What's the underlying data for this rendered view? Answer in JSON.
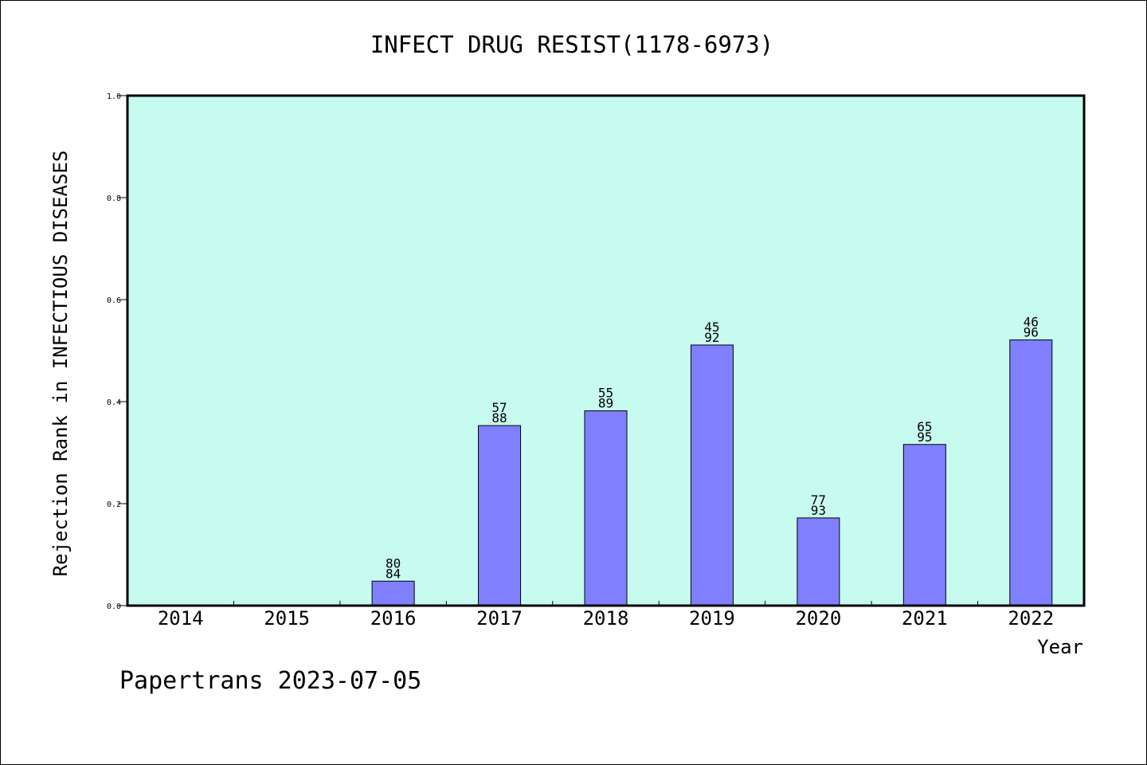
{
  "colors": {
    "plot_background": "#c8fbef",
    "bar_fill": "#8080ff",
    "bar_stroke": "#000000",
    "axis": "#000000",
    "text": "#000000"
  },
  "footer": {
    "watermark": "Papertrans 2023-07-05"
  },
  "chart_data": {
    "type": "bar",
    "title": "INFECT DRUG RESIST(1178-6973)",
    "xlabel": "Year",
    "ylabel": "Rejection Rank in INFECTIOUS DISEASES",
    "ylim": [
      0,
      1.0
    ],
    "yticks": [
      "0.0",
      "0.2",
      "0.4",
      "0.6",
      "0.8",
      "1.0"
    ],
    "grid": false,
    "categories": [
      "2014",
      "2015",
      "2016",
      "2017",
      "2018",
      "2019",
      "2020",
      "2021",
      "2022"
    ],
    "values": [
      null,
      null,
      0.048,
      0.353,
      0.382,
      0.511,
      0.172,
      0.316,
      0.521
    ],
    "labels": [
      null,
      null,
      [
        "80",
        "84"
      ],
      [
        "57",
        "88"
      ],
      [
        "55",
        "89"
      ],
      [
        "45",
        "92"
      ],
      [
        "77",
        "93"
      ],
      [
        "65",
        "95"
      ],
      [
        "46",
        "96"
      ]
    ]
  }
}
